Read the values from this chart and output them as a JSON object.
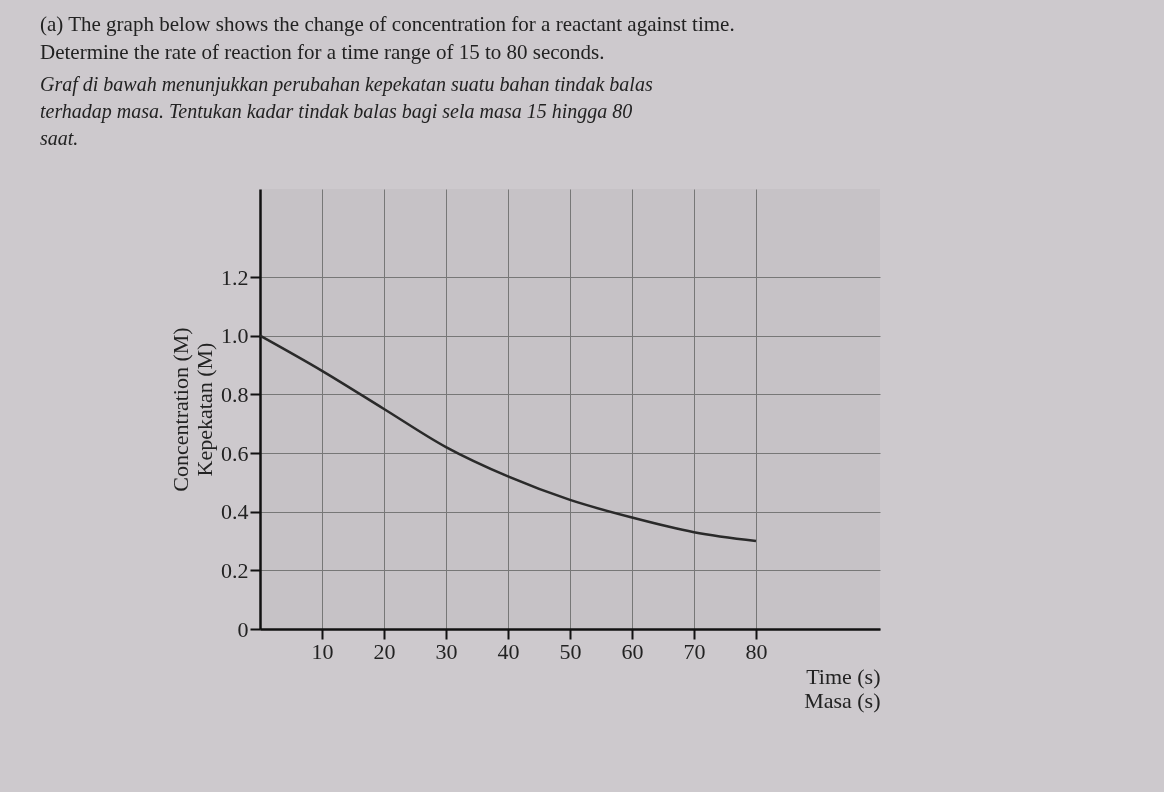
{
  "chart_data": {
    "type": "line",
    "title": "(a) The graph below shows the change of concentration for a reactant against time.\nDetermine the rate of reaction for a time range of 15 to 80 seconds.",
    "subtitle": "Graf di bawah menunjukkan perubahan kepekatan suatu bahan tindak balas\nterhadap masa. Tentukan kadar tindak balas bagi sela masa 15 hingga 80\nsaat.",
    "xlabel": "Time (s)\nMasa (s)",
    "ylabel": "Concentration (M)\nKepekatan (M)",
    "x": [
      0,
      10,
      20,
      30,
      40,
      50,
      60,
      70,
      80
    ],
    "series": [
      {
        "color": "#2a2a2a",
        "values": [
          1.0,
          0.88,
          0.75,
          0.62,
          0.52,
          0.44,
          0.38,
          0.33,
          0.3
        ]
      }
    ],
    "xlim": [
      0,
      100
    ],
    "xticks": [
      10,
      20,
      30,
      40,
      50,
      60,
      70,
      80
    ],
    "ylim": [
      0,
      1.5
    ],
    "yticks": [
      0,
      0.2,
      0.4,
      0.6,
      0.8,
      {
        "value": 1,
        "label": "1.0"
      },
      1.2
    ],
    "grid": true
  }
}
